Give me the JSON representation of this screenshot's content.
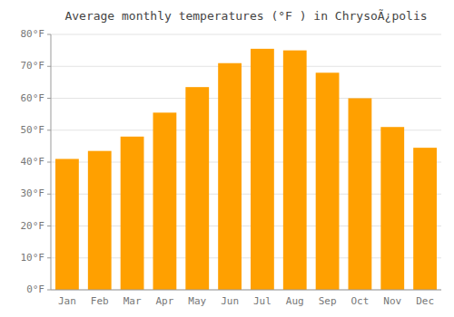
{
  "chart_data": {
    "type": "bar",
    "title": "Average monthly temperatures (°F ) in ChrysoÃ¿polis",
    "categories": [
      "Jan",
      "Feb",
      "Mar",
      "Apr",
      "May",
      "Jun",
      "Jul",
      "Aug",
      "Sep",
      "Oct",
      "Nov",
      "Dec"
    ],
    "values": [
      41,
      43.5,
      48,
      55.5,
      63.5,
      71,
      75.5,
      75,
      68,
      60,
      51,
      44.5
    ],
    "color": "#FFA000",
    "ylim": [
      0,
      80
    ],
    "yticks": [
      {
        "value": 0,
        "label": "0°F"
      },
      {
        "value": 10,
        "label": "10°F"
      },
      {
        "value": 20,
        "label": "20°F"
      },
      {
        "value": 30,
        "label": "30°F"
      },
      {
        "value": 40,
        "label": "40°F"
      },
      {
        "value": 50,
        "label": "50°F"
      },
      {
        "value": 60,
        "label": "60°F"
      },
      {
        "value": 70,
        "label": "70°F"
      },
      {
        "value": 80,
        "label": "80°F"
      }
    ],
    "grid": true
  }
}
